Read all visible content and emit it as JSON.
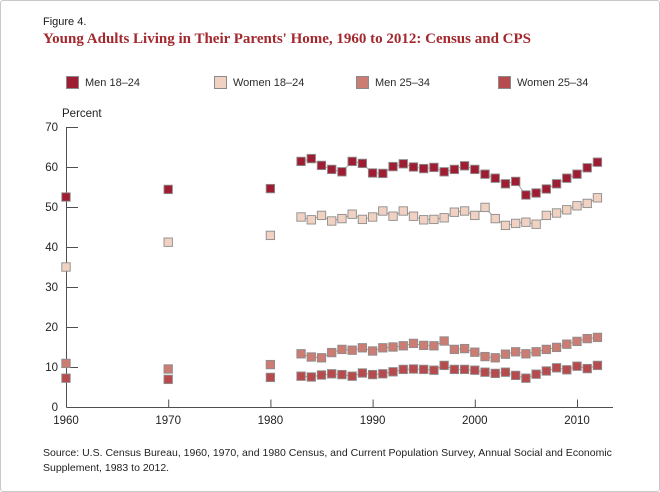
{
  "figure": {
    "label": "Figure 4.",
    "title": "Young Adults Living in Their Parents' Home, 1960 to 2012: Census and CPS"
  },
  "source": "Source: U.S. Census Bureau, 1960, 1970, and 1980 Census, and Current Population Survey, Annual Social and Economic Supplement, 1983 to 2012.",
  "colors": {
    "title_red": "#a3292e",
    "axis": "#4f4f4f",
    "text": "#1f1f1f",
    "connector_line": "#9a9a9a",
    "marker_stroke": "#8c8c8c",
    "men_18_24": "#9e1d33",
    "women_18_24": "#f0d1c2",
    "men_25_34": "#cb7c73",
    "women_25_34": "#b74a4d"
  },
  "chart_data": {
    "type": "scatter",
    "title": "Young Adults Living in Their Parents' Home, 1960 to 2012: Census and CPS",
    "xlabel": "",
    "ylabel": "Percent",
    "ylim": [
      0,
      70
    ],
    "yticks": [
      0,
      10,
      20,
      30,
      40,
      50,
      60,
      70
    ],
    "xticks": [
      1960,
      1970,
      1980,
      1990,
      2000,
      2010
    ],
    "xlim": [
      1960,
      2013
    ],
    "grid": false,
    "legend_position": "top",
    "census_years": [
      1960,
      1970,
      1980
    ],
    "cps_years": [
      1983,
      1984,
      1985,
      1986,
      1987,
      1988,
      1989,
      1990,
      1991,
      1992,
      1993,
      1994,
      1995,
      1996,
      1997,
      1998,
      1999,
      2000,
      2001,
      2002,
      2003,
      2004,
      2005,
      2006,
      2007,
      2008,
      2009,
      2010,
      2011,
      2012
    ],
    "series": [
      {
        "name": "Men 18–24",
        "color": "#9e1d33",
        "census": [
          52.5,
          54.4,
          54.6
        ],
        "cps": [
          61.4,
          62.1,
          60.4,
          59.4,
          58.8,
          61.4,
          60.9,
          58.5,
          58.4,
          60.1,
          60.8,
          60.0,
          59.6,
          59.9,
          58.8,
          59.4,
          60.3,
          59.4,
          58.2,
          57.2,
          55.8,
          56.4,
          53.0,
          53.5,
          54.5,
          55.8,
          57.2,
          58.2,
          59.8,
          61.2
        ]
      },
      {
        "name": "Women 18–24",
        "color": "#f0d1c2",
        "census": [
          35.0,
          41.2,
          42.9
        ],
        "cps": [
          47.5,
          46.8,
          47.9,
          46.5,
          47.1,
          48.2,
          46.9,
          47.5,
          49.0,
          47.7,
          49.0,
          47.7,
          46.8,
          46.9,
          47.3,
          48.7,
          49.0,
          47.9,
          49.9,
          47.1,
          45.4,
          45.9,
          46.2,
          45.7,
          47.9,
          48.5,
          49.3,
          50.3,
          50.9,
          52.3
        ]
      },
      {
        "name": "Men 25–34",
        "color": "#cb7c73",
        "census": [
          10.9,
          9.5,
          10.6
        ],
        "cps": [
          13.3,
          12.5,
          12.3,
          13.6,
          14.4,
          14.2,
          14.8,
          14.0,
          14.8,
          15.0,
          15.3,
          15.9,
          15.4,
          15.3,
          16.5,
          14.4,
          14.6,
          13.7,
          12.6,
          12.3,
          13.2,
          13.8,
          13.3,
          13.8,
          14.4,
          14.9,
          15.7,
          16.4,
          17.1,
          17.4
        ]
      },
      {
        "name": "Women 25–34",
        "color": "#b74a4d",
        "census": [
          7.2,
          6.9,
          7.4
        ],
        "cps": [
          7.7,
          7.5,
          8.0,
          8.3,
          8.1,
          7.7,
          8.5,
          8.1,
          8.3,
          8.8,
          9.4,
          9.5,
          9.4,
          9.2,
          10.4,
          9.4,
          9.4,
          9.2,
          8.7,
          8.4,
          8.7,
          7.9,
          7.2,
          8.2,
          9.0,
          9.8,
          9.3,
          10.2,
          9.6,
          10.4
        ]
      }
    ]
  }
}
